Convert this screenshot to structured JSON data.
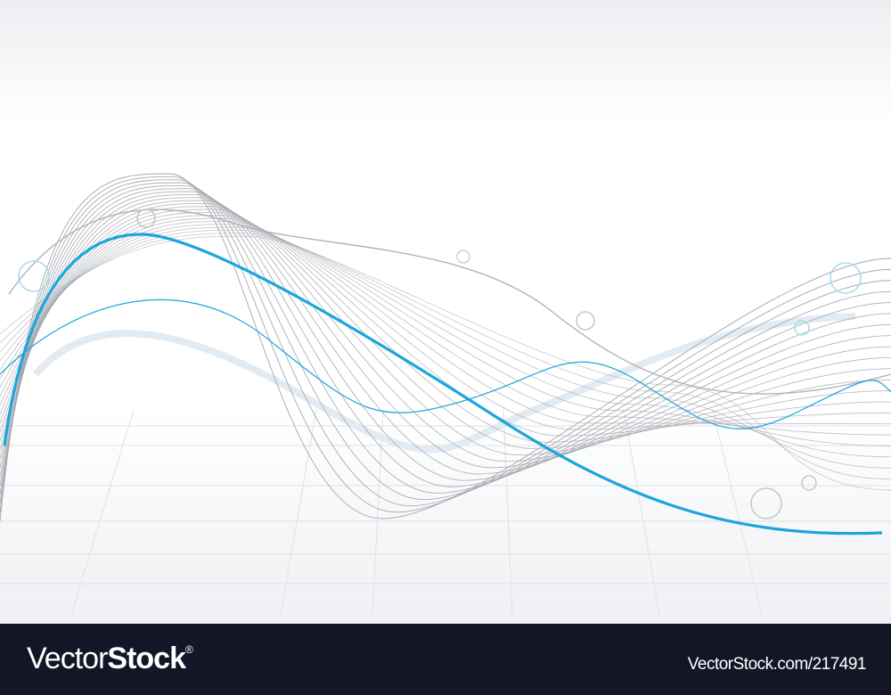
{
  "watermark": {
    "brand_light": "Vector",
    "brand_bold": "Stock",
    "registered": "®",
    "url": "VectorStock.com/217491"
  },
  "colors": {
    "footer_bg": "#131626",
    "accent_blue": "#1aa6dc",
    "mesh_grey": "#a4a7ad",
    "pale_band": "#e3ebf2"
  },
  "icons": [
    "bubble-circle"
  ]
}
